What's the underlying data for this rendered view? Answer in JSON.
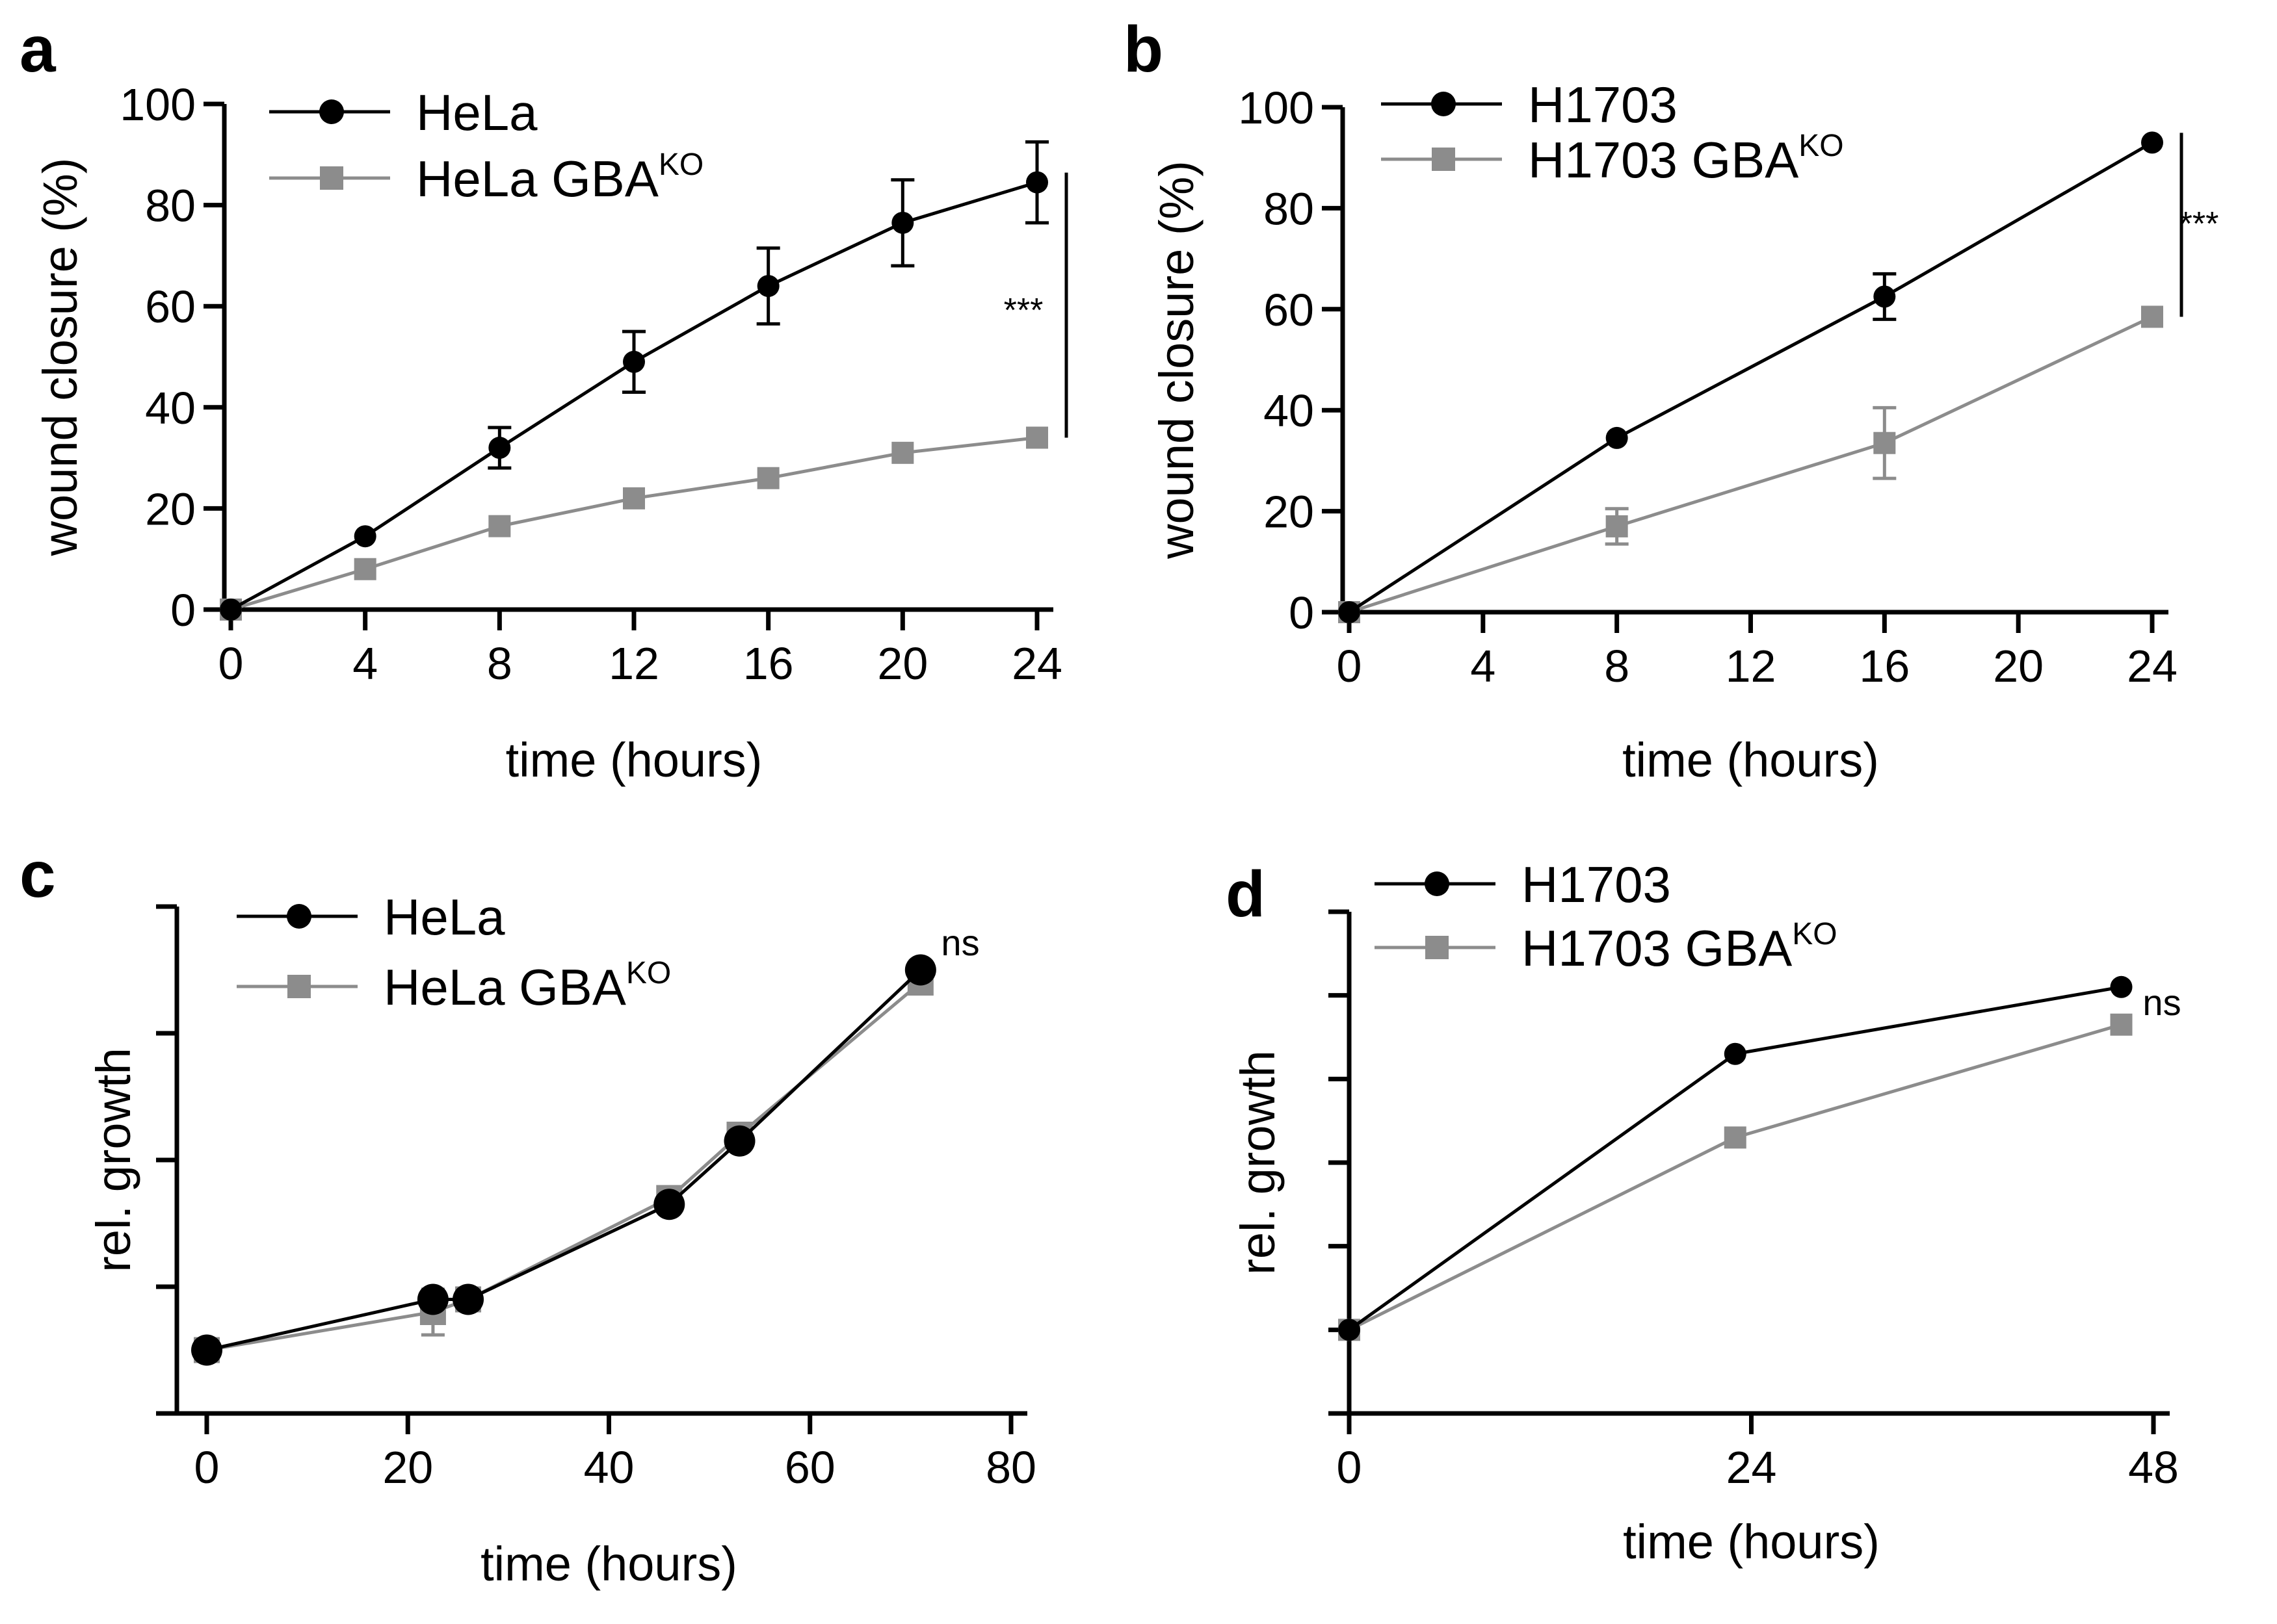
{
  "panels": [
    "a",
    "b",
    "c",
    "d"
  ],
  "colors": {
    "wt": "#000000",
    "ko": "#8c8c8c"
  },
  "chart_data": [
    {
      "panel": "a",
      "type": "line",
      "xlabel": "time (hours)",
      "ylabel": "wound  closure (%)",
      "xlim": [
        0,
        24
      ],
      "ylim": [
        0,
        100
      ],
      "xticks": [
        "0",
        "4",
        "8",
        "12",
        "16",
        "20",
        "24"
      ],
      "yticks": [
        "0",
        "20",
        "40",
        "60",
        "80",
        "100"
      ],
      "legend_position": "top-left",
      "annotation": "***",
      "series": [
        {
          "name": "HeLa",
          "sup": "",
          "marker": "circle",
          "color": "#000000",
          "x": [
            0,
            4,
            8,
            12,
            16,
            20,
            24
          ],
          "values": [
            0,
            14.5,
            32,
            49,
            64,
            76.5,
            84.5
          ],
          "errors": [
            0,
            0,
            4,
            6,
            7.5,
            8.5,
            8
          ]
        },
        {
          "name": "HeLa GBA",
          "sup": "KO",
          "marker": "square",
          "color": "#8c8c8c",
          "x": [
            0,
            4,
            8,
            12,
            16,
            20,
            24
          ],
          "values": [
            0,
            8,
            16.5,
            22,
            26,
            31,
            34
          ],
          "errors": [
            0,
            0,
            0,
            0,
            0,
            0,
            0
          ]
        }
      ]
    },
    {
      "panel": "b",
      "type": "line",
      "xlabel": "time (hours)",
      "ylabel": "wound closure (%)",
      "xlim": [
        0,
        24
      ],
      "ylim": [
        0,
        100
      ],
      "xticks": [
        "0",
        "4",
        "8",
        "12",
        "16",
        "20",
        "24"
      ],
      "yticks": [
        "0",
        "20",
        "40",
        "60",
        "80",
        "100"
      ],
      "legend_position": "top-left",
      "annotation": "***",
      "series": [
        {
          "name": "H1703",
          "sup": "",
          "marker": "circle",
          "color": "#000000",
          "x": [
            0,
            8,
            16,
            24
          ],
          "values": [
            0,
            34.5,
            62.5,
            93
          ],
          "errors": [
            0,
            0,
            4.5,
            0
          ]
        },
        {
          "name": "H1703 GBA",
          "sup": "KO",
          "marker": "square",
          "color": "#8c8c8c",
          "x": [
            0,
            8,
            16,
            24
          ],
          "values": [
            0,
            17,
            33.5,
            58.5
          ],
          "errors": [
            0,
            3.5,
            7,
            0
          ]
        }
      ]
    },
    {
      "panel": "c",
      "type": "line",
      "xlabel": "time (hours)",
      "ylabel": "rel. growth",
      "xlim": [
        0,
        80
      ],
      "ylim": [
        0,
        4
      ],
      "xticks": [
        "0",
        "20",
        "40",
        "60",
        "80"
      ],
      "yticks": [
        "",
        "",
        "",
        "",
        ""
      ],
      "legend_position": "top-left",
      "annotation": "ns",
      "series": [
        {
          "name": "HeLa",
          "sup": "",
          "marker": "circle",
          "color": "#000000",
          "x": [
            0,
            22.5,
            26,
            46,
            53,
            71
          ],
          "values": [
            0.5,
            0.9,
            0.9,
            1.65,
            2.15,
            3.5
          ],
          "errors": [
            0,
            0,
            0,
            0,
            0,
            0
          ]
        },
        {
          "name": "HeLa GBA",
          "sup": "KO",
          "marker": "square",
          "color": "#8c8c8c",
          "x": [
            0,
            22.5,
            26,
            46,
            53,
            71
          ],
          "values": [
            0.5,
            0.8,
            0.9,
            1.7,
            2.2,
            3.4
          ],
          "errors": [
            0,
            0.18,
            0,
            0,
            0,
            0
          ]
        }
      ]
    },
    {
      "panel": "d",
      "type": "line",
      "xlabel": "time (hours)",
      "ylabel": "rel. growth",
      "xlim": [
        0,
        50
      ],
      "ylim": [
        0,
        6
      ],
      "xticks": [
        "0",
        "24",
        "48"
      ],
      "yticks": [
        "",
        "",
        "",
        "",
        "",
        "",
        ""
      ],
      "legend_position": "top-left",
      "annotation": "ns",
      "series": [
        {
          "name": "H1703",
          "sup": "",
          "marker": "circle",
          "color": "#000000",
          "x": [
            0,
            24,
            48
          ],
          "values": [
            1,
            4.3,
            5.1
          ],
          "errors": [
            0,
            0,
            0
          ]
        },
        {
          "name": "H1703 GBA",
          "sup": "KO",
          "marker": "square",
          "color": "#8c8c8c",
          "x": [
            0,
            24,
            48
          ],
          "values": [
            1,
            3.3,
            4.65
          ],
          "errors": [
            0,
            0,
            0
          ]
        }
      ]
    }
  ]
}
